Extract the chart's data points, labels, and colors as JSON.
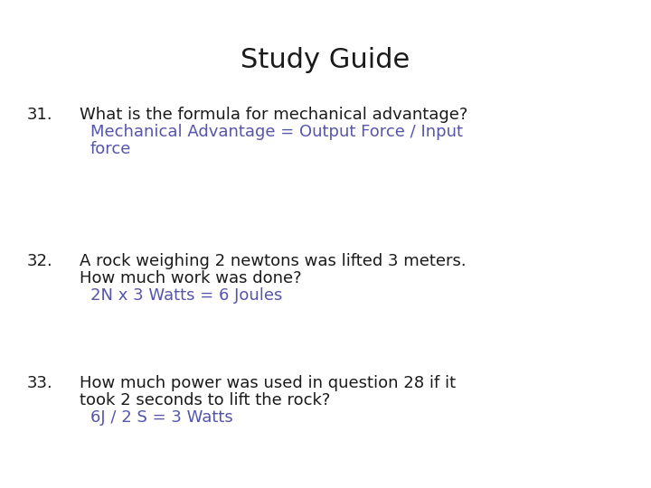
{
  "title": "Study Guide",
  "background_color": "#ffffff",
  "title_color": "#1a1a1a",
  "title_fontsize": 22,
  "question_color": "#1a1a1a",
  "answer_color": "#5555aa",
  "question_fontsize": 13,
  "items": [
    {
      "number": "31.",
      "question": "What is the formula for mechanical advantage?",
      "question_line2": null,
      "answer_line1": "Mechanical Advantage = Output Force / Input",
      "answer_line2": "force"
    },
    {
      "number": "32.",
      "question": "A rock weighing 2 newtons was lifted 3 meters.",
      "question_line2": "How much work was done?",
      "answer_line1": "2N x 3 Watts = 6 Joules",
      "answer_line2": null
    },
    {
      "number": "33.",
      "question": "How much power was used in question 28 if it",
      "question_line2": "took 2 seconds to lift the rock?",
      "answer_line1": "6J / 2 S = 3 Watts",
      "answer_line2": null
    }
  ]
}
